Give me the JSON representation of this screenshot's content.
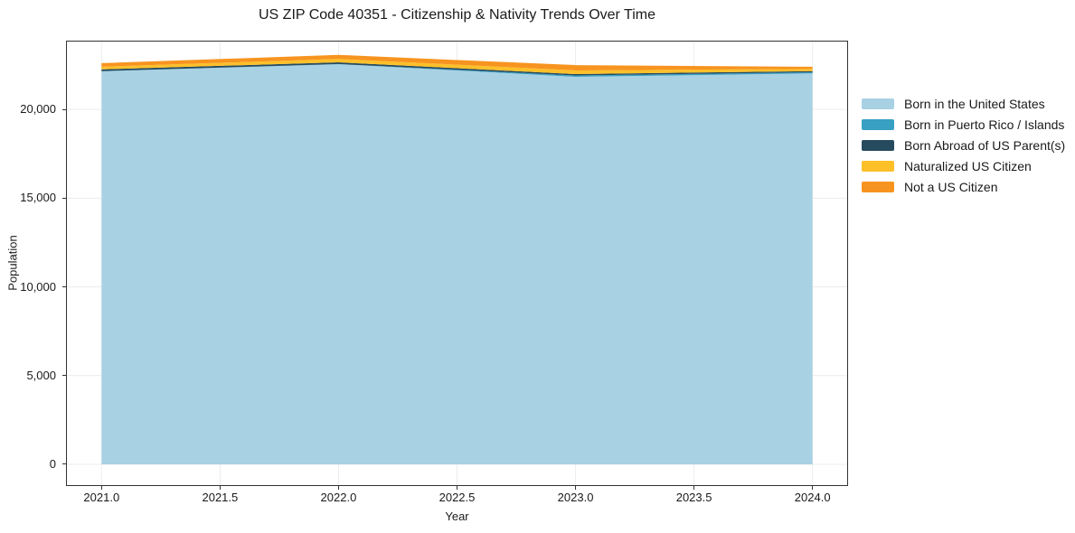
{
  "title": "US ZIP Code 40351 - Citizenship & Nativity Trends Over Time",
  "chart_data": {
    "type": "area",
    "stacked": true,
    "title": "US ZIP Code 40351 - Citizenship & Nativity Trends Over Time",
    "xlabel": "Year",
    "ylabel": "Population",
    "x": [
      2021,
      2022,
      2023,
      2024
    ],
    "series": [
      {
        "name": "Born in the United States",
        "color": "#a9d1e4",
        "values": [
          22150,
          22550,
          21840,
          22030
        ]
      },
      {
        "name": "Born in Puerto Rico / Islands",
        "color": "#38a0c2",
        "values": [
          10,
          10,
          75,
          65
        ]
      },
      {
        "name": "Born Abroad of US Parent(s)",
        "color": "#264a5e",
        "values": [
          100,
          95,
          80,
          65
        ]
      },
      {
        "name": "Naturalized US Citizen",
        "color": "#fdc029",
        "values": [
          150,
          190,
          205,
          125
        ]
      },
      {
        "name": "Not a US Citizen",
        "color": "#f7941f",
        "values": [
          200,
          230,
          300,
          120
        ]
      }
    ],
    "xlim": [
      2020.85,
      2024.15
    ],
    "ylim": [
      -1224,
      23878
    ],
    "xticks": [
      {
        "v": 2021.0,
        "label": "2021.0"
      },
      {
        "v": 2021.5,
        "label": "2021.5"
      },
      {
        "v": 2022.0,
        "label": "2022.0"
      },
      {
        "v": 2022.5,
        "label": "2022.5"
      },
      {
        "v": 2023.0,
        "label": "2023.0"
      },
      {
        "v": 2023.5,
        "label": "2023.5"
      },
      {
        "v": 2024.0,
        "label": "2024.0"
      }
    ],
    "yticks": [
      {
        "v": 0,
        "label": "0"
      },
      {
        "v": 5000,
        "label": "5,000"
      },
      {
        "v": 10000,
        "label": "10,000"
      },
      {
        "v": 15000,
        "label": "15,000"
      },
      {
        "v": 20000,
        "label": "20,000"
      }
    ],
    "grid": true,
    "legend_position": "right-outside"
  },
  "colors": {
    "background": "#ffffff",
    "grid": "#ececec",
    "spine": "#333333",
    "text": "#1a1a1a"
  }
}
